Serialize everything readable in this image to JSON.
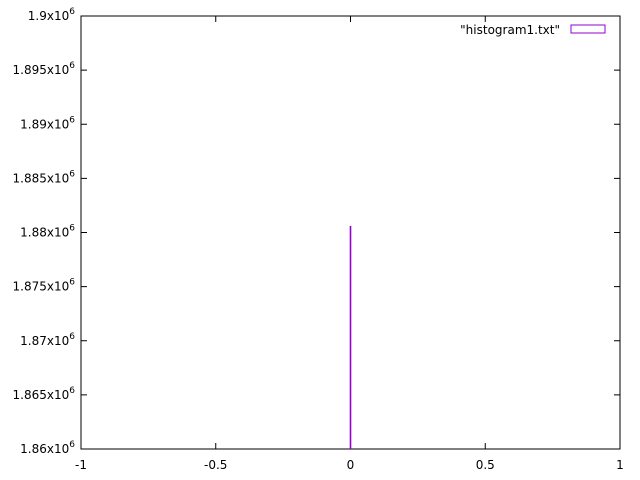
{
  "chart_data": {
    "type": "bar",
    "x": [
      0
    ],
    "values": [
      1880600
    ],
    "series": [
      {
        "name": "\"histogram1.txt\"",
        "x": [
          0
        ],
        "values": [
          1880600
        ]
      }
    ],
    "legend_placement": "top-right",
    "xlim": [
      -1,
      1
    ],
    "ylim": [
      1860000,
      1900000
    ],
    "x_ticks": [
      -1,
      -0.5,
      0,
      0.5,
      1
    ],
    "x_tick_labels": [
      "-1",
      "-0.5",
      "0",
      "0.5",
      "1"
    ],
    "y_ticks": [
      1860000,
      1865000,
      1870000,
      1875000,
      1880000,
      1885000,
      1890000,
      1895000,
      1900000
    ],
    "y_tick_labels": [
      {
        "mantissa": "1.86x10",
        "exponent": "6"
      },
      {
        "mantissa": "1.865x10",
        "exponent": "6"
      },
      {
        "mantissa": "1.87x10",
        "exponent": "6"
      },
      {
        "mantissa": "1.875x10",
        "exponent": "6"
      },
      {
        "mantissa": "1.88x10",
        "exponent": "6"
      },
      {
        "mantissa": "1.885x10",
        "exponent": "6"
      },
      {
        "mantissa": "1.89x10",
        "exponent": "6"
      },
      {
        "mantissa": "1.895x10",
        "exponent": "6"
      },
      {
        "mantissa": "1.9x10",
        "exponent": "6"
      }
    ],
    "grid": false,
    "title": "",
    "xlabel": "",
    "ylabel": ""
  },
  "colors": {
    "series": "#9400d3",
    "axis": "#000000",
    "background": "#ffffff"
  }
}
